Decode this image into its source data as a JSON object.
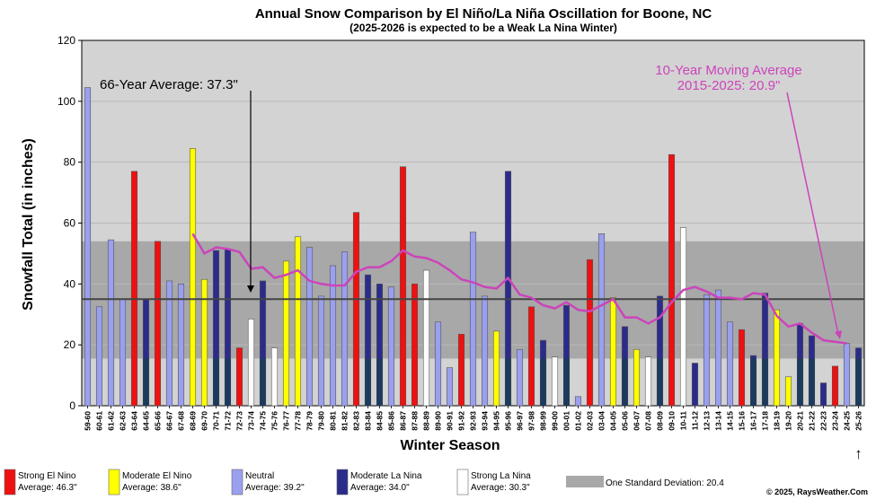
{
  "chart_data": {
    "type": "bar",
    "title": "Annual Snow Comparison by El Niño/La Niña Oscillation for Boone, NC",
    "subtitle": "(2025-2026 is expected to be a Weak La Nina Winter)",
    "xlabel": "Winter Season",
    "ylabel": "Snowfall Total (in inches)",
    "ylim": [
      0,
      120
    ],
    "yticks": [
      0,
      20,
      40,
      60,
      80,
      100,
      120
    ],
    "grid": true,
    "std_band": [
      15.5,
      54.0
    ],
    "average_line": 35.0,
    "annotations": {
      "avg": "66-Year Average: 37.3\"",
      "mov_line1": "10-Year Moving Average",
      "mov_line2": "2015-2025: 20.9\"",
      "arrow_last": "↑"
    },
    "copyright": "© 2025, RaysWeather.Com",
    "colors": {
      "strong_el_nino": "#ee1111",
      "moderate_el_nino": "#ffff00",
      "neutral": "#9aa0ee",
      "moderate_la_nina": "#2b2b8c",
      "strong_la_nina": "#ffffff",
      "moving_average": "#cc44bb"
    },
    "legend": [
      {
        "type": "strong_el_nino",
        "name": "Strong El Nino",
        "avg": "Average: 46.3\""
      },
      {
        "type": "moderate_el_nino",
        "name": "Moderate El Nino",
        "avg": "Average: 38.6\""
      },
      {
        "type": "neutral",
        "name": "Neutral",
        "avg": "Average: 39.2\""
      },
      {
        "type": "moderate_la_nina",
        "name": "Moderate La Nina",
        "avg": "Average: 34.0\""
      },
      {
        "type": "strong_la_nina",
        "name": "Strong La Nina",
        "avg": "Average: 30.3\""
      },
      {
        "type": "std",
        "name": "One Standard Deviation: 20.4",
        "avg": ""
      }
    ],
    "categories": [
      "59-60",
      "60-61",
      "61-62",
      "62-63",
      "63-64",
      "64-65",
      "65-66",
      "66-67",
      "67-68",
      "68-69",
      "69-70",
      "70-71",
      "71-72",
      "72-73",
      "73-74",
      "74-75",
      "75-76",
      "76-77",
      "77-78",
      "78-79",
      "79-80",
      "80-81",
      "81-82",
      "82-83",
      "83-84",
      "84-85",
      "85-86",
      "86-87",
      "87-88",
      "88-89",
      "89-90",
      "90-91",
      "91-92",
      "92-93",
      "93-94",
      "94-95",
      "95-96",
      "96-97",
      "97-98",
      "98-99",
      "99-00",
      "00-01",
      "01-02",
      "02-03",
      "03-04",
      "04-05",
      "05-06",
      "06-07",
      "07-08",
      "08-09",
      "09-10",
      "10-11",
      "11-12",
      "12-13",
      "13-14",
      "14-15",
      "15-16",
      "16-17",
      "17-18",
      "18-19",
      "19-20",
      "20-21",
      "21-22",
      "22-23",
      "23-24",
      "24-25",
      "25-26"
    ],
    "values": [
      104.5,
      32.5,
      54.5,
      35,
      77,
      35,
      54,
      41,
      40,
      84.5,
      41.5,
      51,
      51.5,
      19,
      28.5,
      41,
      19,
      47.5,
      55.5,
      52,
      36,
      46,
      50.5,
      63.5,
      43,
      40,
      39,
      78.5,
      40,
      44.5,
      27.5,
      12.5,
      23.5,
      57,
      36,
      24.5,
      77,
      18.5,
      32.5,
      21.5,
      16,
      33,
      3,
      48,
      56.5,
      35.5,
      26,
      18.5,
      16,
      36,
      82.5,
      58.5,
      14,
      36.5,
      38,
      27.5,
      25,
      16.5,
      37,
      31.5,
      9.5,
      27,
      23,
      7.5,
      13,
      20.5,
      19
    ],
    "enso": [
      "neutral",
      "neutral",
      "neutral",
      "neutral",
      "strong_el_nino",
      "moderate_la_nina",
      "strong_el_nino",
      "neutral",
      "neutral",
      "moderate_el_nino",
      "moderate_el_nino",
      "moderate_la_nina",
      "moderate_la_nina",
      "strong_el_nino",
      "strong_la_nina",
      "moderate_la_nina",
      "strong_la_nina",
      "moderate_el_nino",
      "moderate_el_nino",
      "neutral",
      "neutral",
      "neutral",
      "neutral",
      "strong_el_nino",
      "moderate_la_nina",
      "moderate_la_nina",
      "neutral",
      "strong_el_nino",
      "strong_el_nino",
      "strong_la_nina",
      "neutral",
      "neutral",
      "strong_el_nino",
      "neutral",
      "neutral",
      "moderate_el_nino",
      "moderate_la_nina",
      "neutral",
      "strong_el_nino",
      "moderate_la_nina",
      "strong_la_nina",
      "moderate_la_nina",
      "neutral",
      "strong_el_nino",
      "neutral",
      "moderate_el_nino",
      "moderate_la_nina",
      "moderate_el_nino",
      "strong_la_nina",
      "moderate_la_nina",
      "strong_el_nino",
      "strong_la_nina",
      "moderate_la_nina",
      "neutral",
      "neutral",
      "neutral",
      "strong_el_nino",
      "moderate_la_nina",
      "moderate_la_nina",
      "moderate_el_nino",
      "moderate_el_nino",
      "moderate_la_nina",
      "moderate_la_nina",
      "moderate_la_nina",
      "strong_el_nino",
      "neutral",
      "moderate_la_nina"
    ],
    "moving_average": {
      "start_index": 9,
      "values": [
        56.5,
        50,
        52,
        51.5,
        50.5,
        45,
        45.5,
        42,
        43,
        44.5,
        41,
        40,
        39.5,
        39.5,
        44,
        45.5,
        45.5,
        47.5,
        51,
        49,
        48.5,
        47,
        44.5,
        41.5,
        40.5,
        39,
        38.5,
        42,
        36.5,
        35.5,
        33,
        32,
        34,
        31.5,
        31,
        33,
        35,
        29,
        29,
        27,
        29,
        34,
        38,
        39,
        37.5,
        35.5,
        35.5,
        35,
        37,
        36.5,
        29.5,
        26,
        27,
        24,
        21.5,
        21,
        20.5
      ]
    }
  }
}
